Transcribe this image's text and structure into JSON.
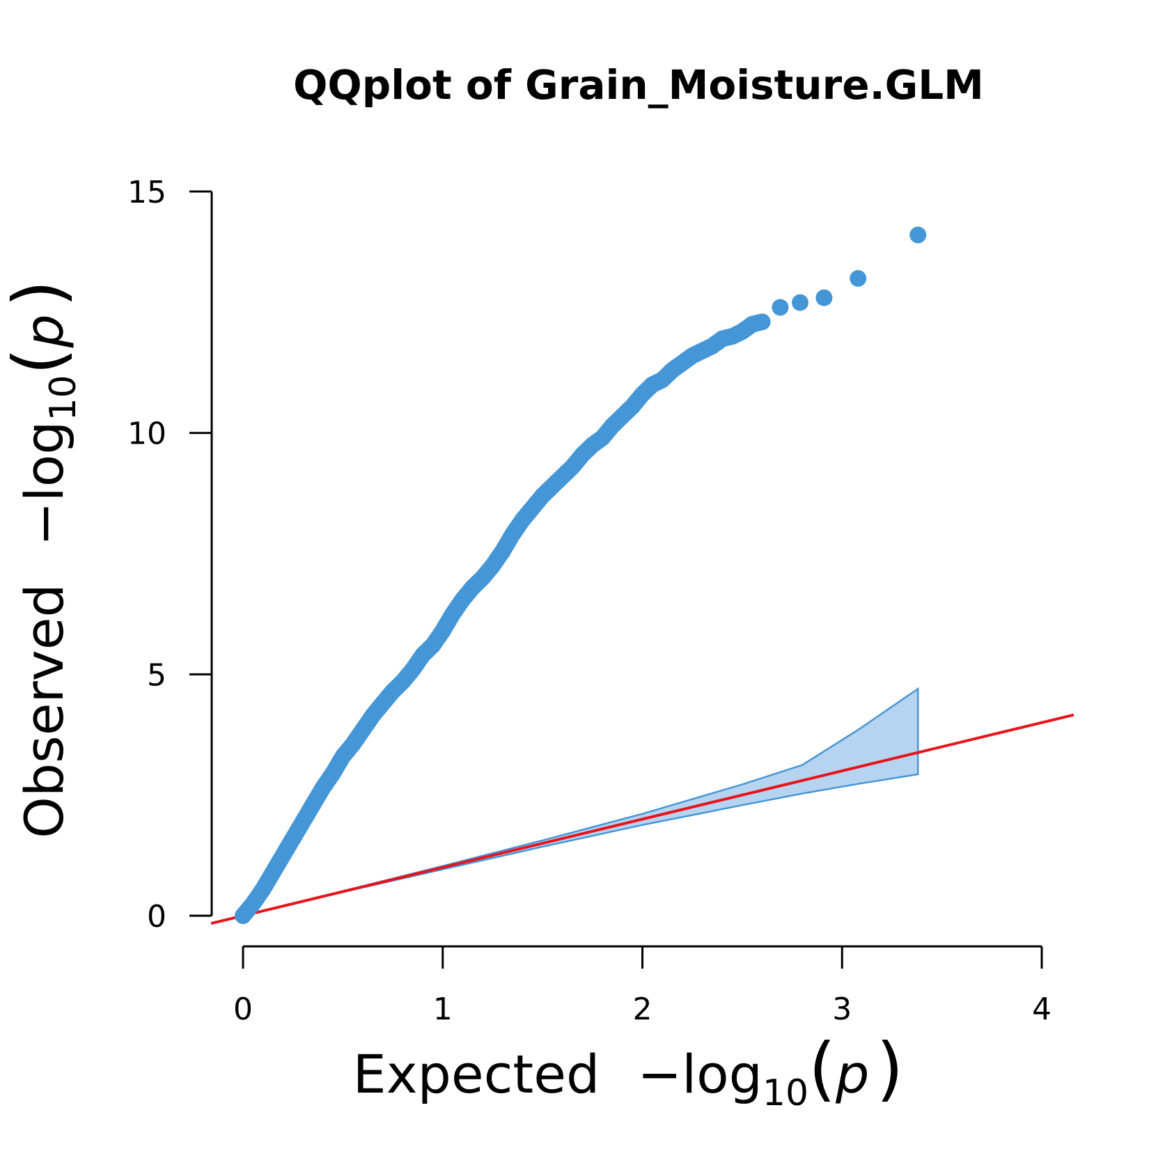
{
  "chart_data": {
    "type": "scatter",
    "title": "QQplot of Grain_Moisture.GLM",
    "xlabel": {
      "prefix": "Expected",
      "minus": "−",
      "log": "log",
      "sub": "10",
      "open": "(",
      "var": "p",
      "close": ")"
    },
    "ylabel": {
      "prefix": "Observed",
      "minus": "−",
      "log": "log",
      "sub": "10",
      "open": "(",
      "var": "p",
      "close": ")"
    },
    "xticks": [
      0,
      1,
      2,
      3,
      4
    ],
    "yticks": [
      0,
      5,
      10,
      15
    ],
    "xtick_labels": [
      "0",
      "1",
      "2",
      "3",
      "4"
    ],
    "ytick_labels": [
      "0",
      "5",
      "10",
      "15"
    ],
    "xlim": [
      -0.16,
      4.16
    ],
    "ylim": [
      -0.15,
      15
    ],
    "grid": false,
    "legend": "none",
    "colors": {
      "points": "#4596d6",
      "band_fill": "#b6d4ef",
      "band_stroke": "#4596d6",
      "reference": "#e8131b"
    },
    "reference_line": {
      "slope": 1,
      "intercept": 0,
      "range": [
        -0.16,
        4.16
      ]
    },
    "confidence_band": {
      "x": [
        0.0,
        0.5,
        1.0,
        1.5,
        2.0,
        2.5,
        2.8,
        3.08,
        3.38
      ],
      "upper": [
        0.0,
        0.51,
        1.03,
        1.56,
        2.11,
        2.72,
        3.12,
        3.85,
        4.7
      ],
      "lower": [
        0.0,
        0.49,
        0.96,
        1.43,
        1.88,
        2.29,
        2.53,
        2.73,
        2.93
      ]
    },
    "series": [
      {
        "x": [
          0.0,
          0.05,
          0.1,
          0.15,
          0.2,
          0.25,
          0.3,
          0.35,
          0.4,
          0.45,
          0.5,
          0.55,
          0.6,
          0.65,
          0.7,
          0.75,
          0.8,
          0.85,
          0.9,
          0.95,
          1.0,
          1.05,
          1.1,
          1.15,
          1.2,
          1.25,
          1.3,
          1.35,
          1.4,
          1.45,
          1.5,
          1.55,
          1.6,
          1.65,
          1.7,
          1.75,
          1.8,
          1.85,
          1.9,
          1.95,
          2.0,
          2.05,
          2.1,
          2.15,
          2.2,
          2.25,
          2.3,
          2.35,
          2.4,
          2.45,
          2.5,
          2.55,
          2.6,
          2.69,
          2.79,
          2.91,
          3.08,
          3.38
        ],
        "y": [
          0.0,
          0.25,
          0.55,
          0.9,
          1.25,
          1.6,
          1.95,
          2.3,
          2.65,
          2.95,
          3.3,
          3.55,
          3.85,
          4.15,
          4.4,
          4.65,
          4.85,
          5.1,
          5.4,
          5.6,
          5.9,
          6.25,
          6.55,
          6.8,
          7.0,
          7.25,
          7.55,
          7.9,
          8.2,
          8.45,
          8.7,
          8.9,
          9.1,
          9.3,
          9.55,
          9.75,
          9.9,
          10.15,
          10.35,
          10.55,
          10.8,
          11.0,
          11.1,
          11.3,
          11.45,
          11.6,
          11.7,
          11.8,
          11.95,
          12.0,
          12.1,
          12.25,
          12.3,
          12.6,
          12.7,
          12.8,
          13.2,
          14.1
        ]
      }
    ]
  }
}
